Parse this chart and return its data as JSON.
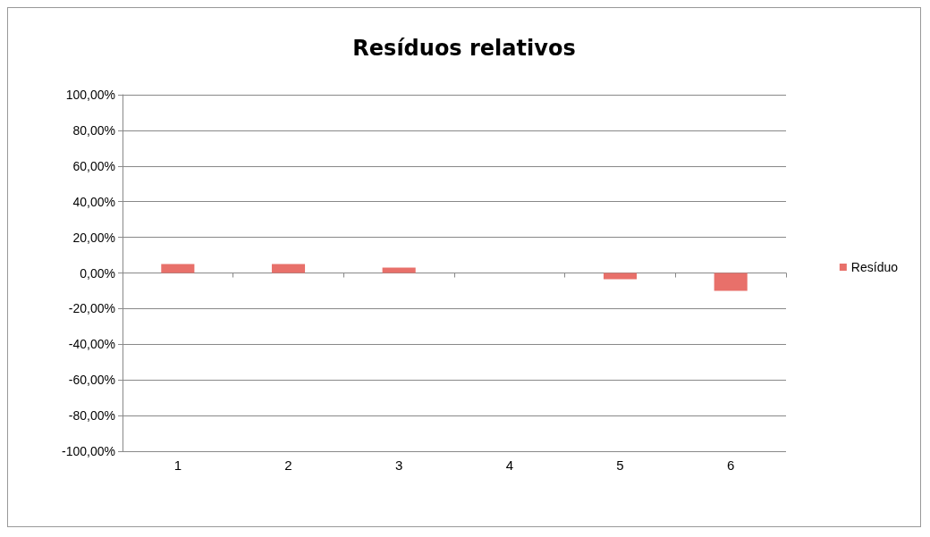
{
  "chart_data": {
    "type": "bar",
    "title": "Resíduos relativos",
    "categories": [
      "1",
      "2",
      "3",
      "4",
      "5",
      "6"
    ],
    "series": [
      {
        "name": "Resíduo",
        "color": "#e8706a",
        "values": [
          5,
          5,
          3,
          0,
          -3.5,
          -10
        ]
      }
    ],
    "ylim": [
      -100,
      100
    ],
    "yticks": [
      {
        "value": -100,
        "label": "-100,00%"
      },
      {
        "value": -80,
        "label": "-80,00%"
      },
      {
        "value": -60,
        "label": "-60,00%"
      },
      {
        "value": -40,
        "label": "-40,00%"
      },
      {
        "value": -20,
        "label": "-20,00%"
      },
      {
        "value": 0,
        "label": "0,00%"
      },
      {
        "value": 20,
        "label": "20,00%"
      },
      {
        "value": 40,
        "label": "40,00%"
      },
      {
        "value": 60,
        "label": "60,00%"
      },
      {
        "value": 80,
        "label": "80,00%"
      },
      {
        "value": 100,
        "label": "100,00%"
      }
    ],
    "grid": "y",
    "legend": "right"
  }
}
